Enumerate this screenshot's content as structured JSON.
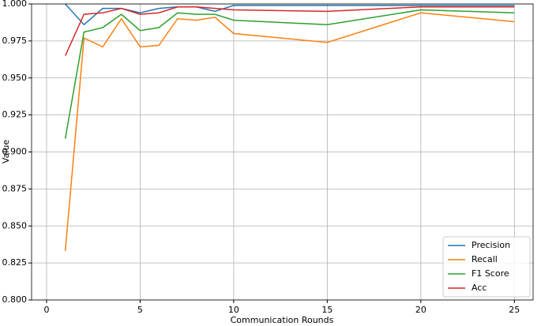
{
  "chart_data": {
    "type": "line",
    "x_label": "Communication Rounds",
    "y_label": "Value",
    "x": [
      1,
      2,
      3,
      4,
      5,
      6,
      7,
      8,
      9,
      10,
      15,
      20,
      25
    ],
    "series": [
      {
        "name": "Precision",
        "color": "#1f77b4",
        "values": [
          1.0,
          0.986,
          0.997,
          0.997,
          0.994,
          0.997,
          0.998,
          0.998,
          0.995,
          0.999,
          0.999,
          0.999,
          0.999
        ]
      },
      {
        "name": "Recall",
        "color": "#ff7f0e",
        "values": [
          0.833,
          0.977,
          0.971,
          0.99,
          0.971,
          0.972,
          0.99,
          0.989,
          0.991,
          0.98,
          0.974,
          0.994,
          0.988
        ]
      },
      {
        "name": "F1 Score",
        "color": "#2ca02c",
        "values": [
          0.909,
          0.981,
          0.984,
          0.993,
          0.982,
          0.984,
          0.994,
          0.993,
          0.993,
          0.989,
          0.986,
          0.996,
          0.994
        ]
      },
      {
        "name": "Acc",
        "color": "#d62728",
        "values": [
          0.965,
          0.993,
          0.994,
          0.997,
          0.993,
          0.994,
          0.998,
          0.998,
          0.997,
          0.996,
          0.995,
          0.998,
          0.998
        ]
      }
    ],
    "xlim": [
      -0.8,
      26
    ],
    "xticks": [
      0,
      5,
      10,
      15,
      20,
      25
    ],
    "ylim": [
      0.8,
      1.0
    ],
    "yticks": [
      {
        "value": 0.8,
        "label": "0.800"
      },
      {
        "value": 0.825,
        "label": "0.825"
      },
      {
        "value": 0.85,
        "label": "0.850"
      },
      {
        "value": 0.875,
        "label": "0.875"
      },
      {
        "value": 0.9,
        "label": "0.900"
      },
      {
        "value": 0.925,
        "label": "0.925"
      },
      {
        "value": 0.95,
        "label": "0.950"
      },
      {
        "value": 0.975,
        "label": "0.975"
      },
      {
        "value": 1.0,
        "label": "1.000"
      }
    ],
    "grid": true,
    "legend": "lower right"
  }
}
